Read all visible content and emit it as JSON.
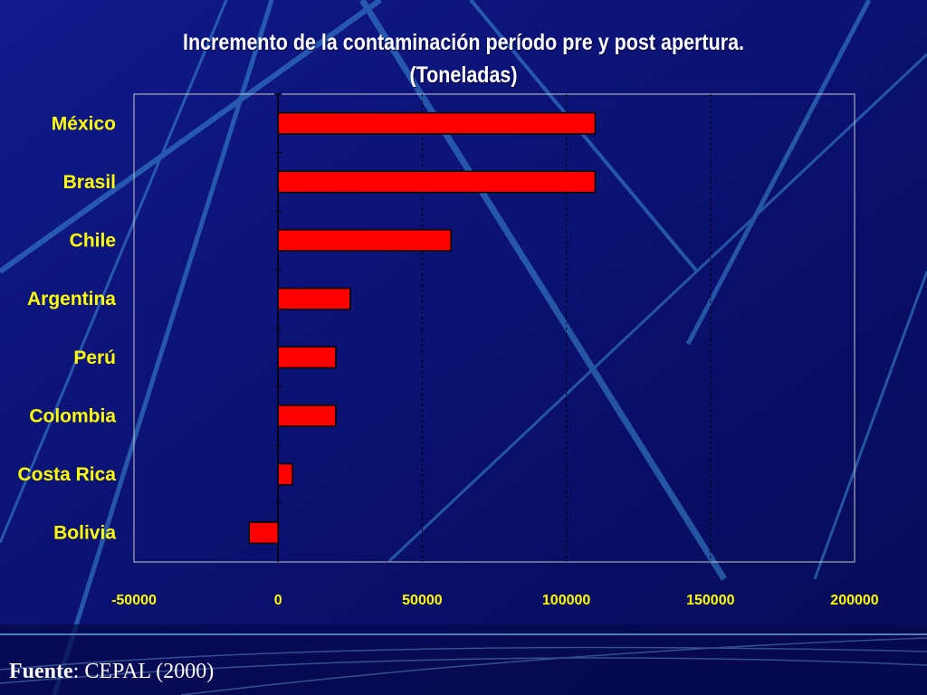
{
  "chart_data": {
    "type": "bar",
    "orientation": "horizontal",
    "title_line1": "Incremento de la contaminación período pre y post apertura.",
    "title_line2": "(Toneladas)",
    "categories": [
      "México",
      "Brasil",
      "Chile",
      "Argentina",
      "Perú",
      "Colombia",
      "Costa Rica",
      "Bolivia"
    ],
    "values": [
      110000,
      110000,
      60000,
      25000,
      20000,
      20000,
      5000,
      -10000
    ],
    "xlim": [
      -50000,
      200000
    ],
    "xticks": [
      "-50000",
      "0",
      "50000",
      "100000",
      "150000",
      "200000"
    ],
    "xlabel": "",
    "ylabel": "",
    "grid": "vertical dashed",
    "bar_color": "#ff0000",
    "label_color": "#ffff00"
  },
  "footer": {
    "source_label": "Fuente",
    "source_text": ": CEPAL (2000)"
  }
}
